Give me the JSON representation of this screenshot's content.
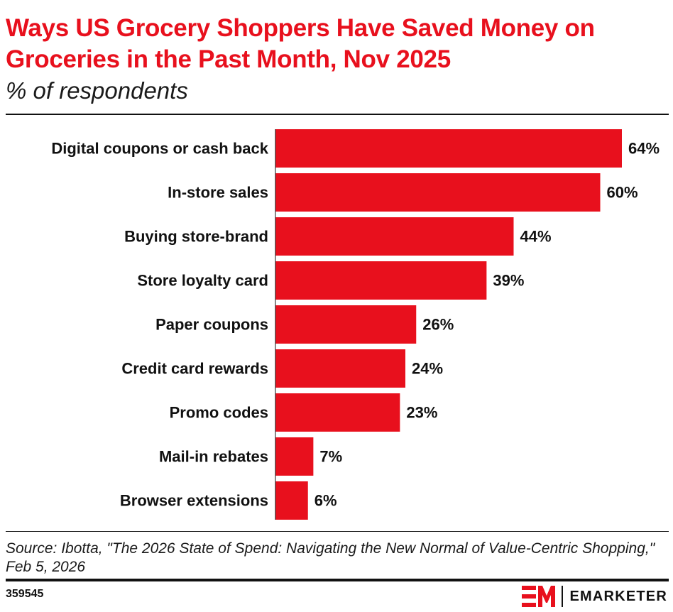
{
  "header": {
    "title": "Ways US Grocery Shoppers Have Saved Money on Groceries in the Past Month, Nov 2025",
    "subtitle": "% of respondents"
  },
  "chart_data": {
    "type": "bar",
    "orientation": "horizontal",
    "categories": [
      "Digital coupons or cash back",
      "In-store sales",
      "Buying store-brand",
      "Store loyalty card",
      "Paper coupons",
      "Credit card rewards",
      "Promo codes",
      "Mail-in rebates",
      "Browser extensions"
    ],
    "values": [
      64,
      60,
      44,
      39,
      26,
      24,
      23,
      7,
      6
    ],
    "value_labels": [
      "64%",
      "60%",
      "44%",
      "39%",
      "26%",
      "24%",
      "23%",
      "7%",
      "6%"
    ],
    "xlim": [
      0,
      64
    ],
    "bar_color": "#e8101d",
    "grid": false,
    "legend": "none"
  },
  "footer": {
    "source": "Source: Ibotta, \"The 2026 State of Spend: Navigating the New Normal of Value-Centric Shopping,\" Feb 5, 2026",
    "chart_id": "359545",
    "brand": "EMARKETER",
    "brand_color": "#e8101d"
  }
}
